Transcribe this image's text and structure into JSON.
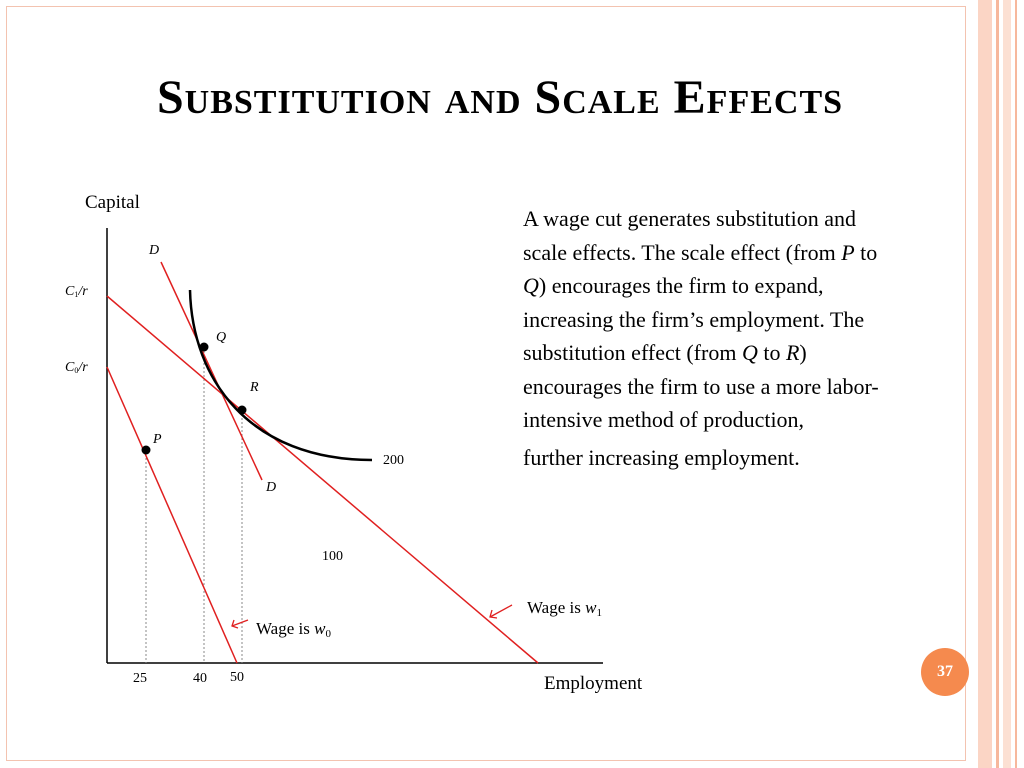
{
  "slide": {
    "title": "Substitution and Scale Effects",
    "page_number": "37",
    "colors": {
      "accent": "#f58a4e",
      "frame": "#f3c3b0",
      "stripe": "#f7b89d",
      "isocost": "#e02020",
      "isoquant": "#000000"
    }
  },
  "paragraph": {
    "t1": "A wage cut generates substitution and scale effects. The scale effect (from ",
    "p1": "P",
    "t2": " to ",
    "q1": "Q",
    "t3": ") encourages the firm to expand, increasing the firm’s employment. The substitution effect (from ",
    "q2": "Q",
    "t4": " to ",
    "r1": "R",
    "t5": ") encourages the firm to use a more labor-intensive method of production,",
    "t6": "further increasing employment."
  },
  "diagram": {
    "y_axis_label": "Capital",
    "x_axis_label": "Employment",
    "y_ticks": {
      "c1": {
        "letter": "C",
        "sub": "1",
        "suffix": "/r"
      },
      "c0": {
        "letter": "C",
        "sub": "0",
        "suffix": "/r"
      }
    },
    "x_ticks": [
      "25",
      "40",
      "50"
    ],
    "points": {
      "P": "P",
      "Q": "Q",
      "R": "R"
    },
    "line_D_top": "D",
    "line_D_bottom": "D",
    "isoquant_labels": {
      "high": "200",
      "low": "100"
    },
    "wage_labels": {
      "w1": {
        "text": "Wage is ",
        "var": "w",
        "sub": "1"
      },
      "w0": {
        "text": "Wage is ",
        "var": "w",
        "sub": "0"
      }
    }
  }
}
